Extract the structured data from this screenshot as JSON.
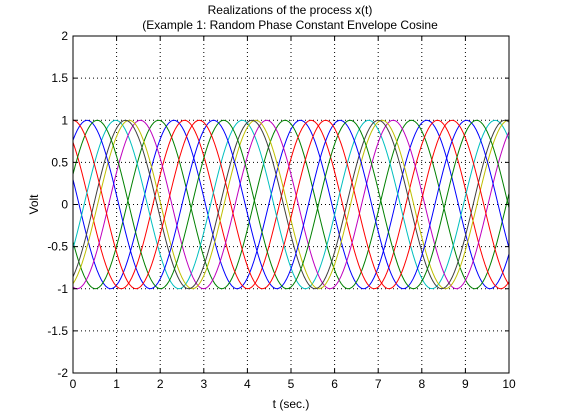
{
  "figure": {
    "background": "#ffffff",
    "axes_background": "#ffffff"
  },
  "chart_data": {
    "type": "line",
    "title": [
      "Realizations of the process x(t)",
      "(Example 1: Random Phase Constant Envelope Cosine"
    ],
    "xlabel": "t (sec.)",
    "ylabel": "Volt",
    "xlim": [
      0,
      10
    ],
    "ylim": [
      -2,
      2
    ],
    "xticks": [
      0,
      1,
      2,
      3,
      4,
      5,
      6,
      7,
      8,
      9,
      10
    ],
    "xtick_labels": [
      "0",
      "1",
      "2",
      "3",
      "4",
      "5",
      "6",
      "7",
      "8",
      "9",
      "10"
    ],
    "yticks": [
      -2,
      -1.5,
      -1,
      -0.5,
      0,
      0.5,
      1,
      1.5,
      2
    ],
    "ytick_labels": [
      "-2",
      "-1.5",
      "-1",
      "-0.5",
      "0",
      "0.5",
      "1",
      "1.5",
      "2"
    ],
    "grid": true,
    "grid_style": "dotted",
    "amplitude": 1,
    "frequency_hz": 0.3448,
    "sample_step": 0.05,
    "series": [
      {
        "color": "#0000ff",
        "phase_rad": 1.27
      },
      {
        "color": "#008000",
        "phase_rad": 2.03
      },
      {
        "color": "#ff0000",
        "phase_rad": 0.74
      },
      {
        "color": "#00bfbf",
        "phase_rad": 4.16
      },
      {
        "color": "#bf00bf",
        "phase_rad": 2.94
      },
      {
        "color": "#bfbf00",
        "phase_rad": 3.49
      },
      {
        "color": "#404040",
        "phase_rad": 3.68
      },
      {
        "color": "#0000ff",
        "phase_rad": 5.58
      },
      {
        "color": "#008000",
        "phase_rad": 5.08
      },
      {
        "color": "#ff0000",
        "phase_rad": 0.01
      }
    ]
  }
}
